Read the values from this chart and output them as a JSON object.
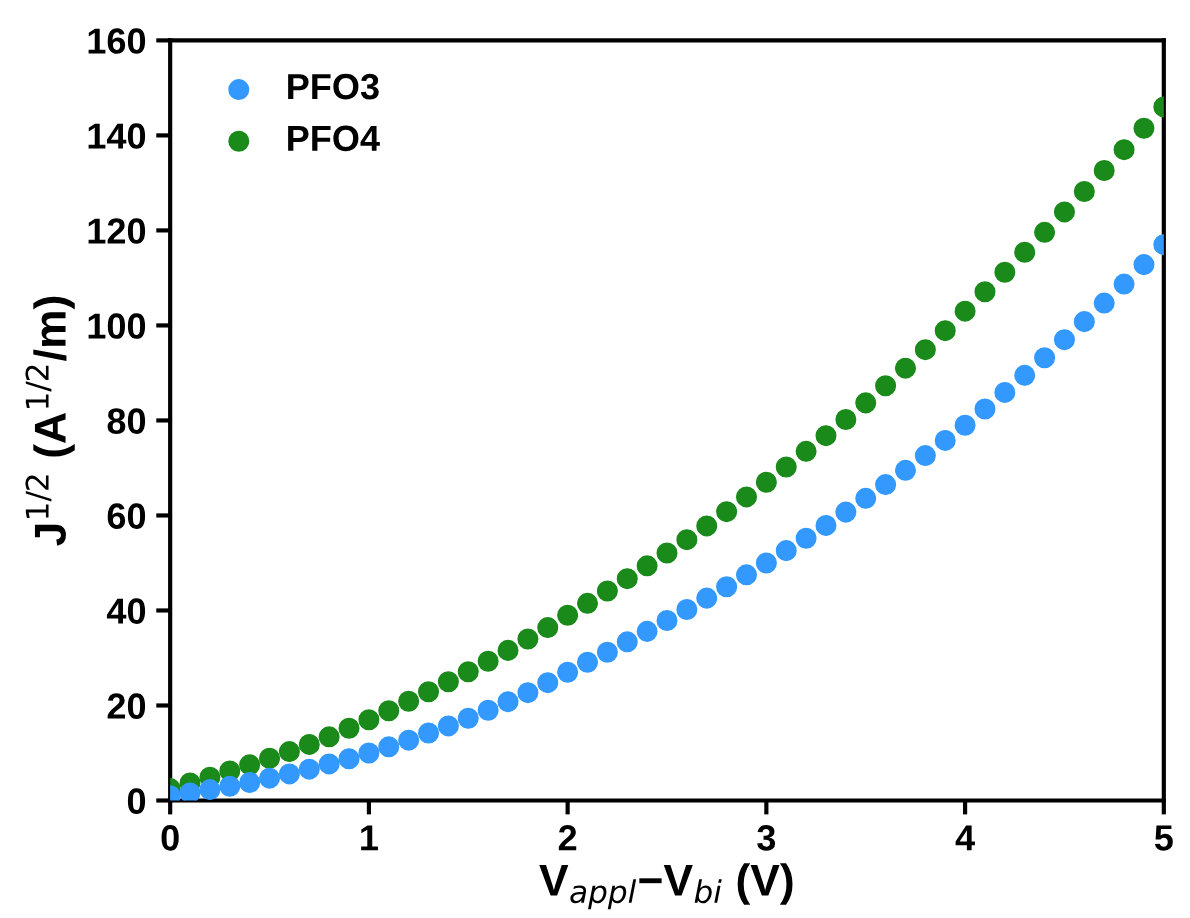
{
  "chart_data": {
    "type": "scatter",
    "xlabel": "V$_{appl}$−V$_{bi}$ (V)",
    "ylabel": "J$^{1/2}$ (A$^{1/2}$/m)",
    "x": [
      0,
      0.1,
      0.2,
      0.3,
      0.4,
      0.5,
      0.6,
      0.7,
      0.8,
      0.9,
      1.0,
      1.1,
      1.2,
      1.3,
      1.4,
      1.5,
      1.6,
      1.7,
      1.8,
      1.9,
      2.0,
      2.1,
      2.2,
      2.3,
      2.4,
      2.5,
      2.6,
      2.7,
      2.8,
      2.9,
      3.0,
      3.1,
      3.2,
      3.3,
      3.4,
      3.5,
      3.6,
      3.7,
      3.8,
      3.9,
      4.0,
      4.1,
      4.2,
      4.3,
      4.4,
      4.5,
      4.6,
      4.7,
      4.8,
      4.9,
      5.0
    ],
    "series": [
      {
        "name": "PFO3",
        "color": "#3399ff",
        "values": [
          1,
          1.6,
          2.3,
          3,
          3.8,
          4.7,
          5.6,
          6.6,
          7.7,
          8.8,
          10,
          11.3,
          12.7,
          14.2,
          15.7,
          17.3,
          19,
          20.8,
          22.7,
          24.8,
          27,
          29.1,
          31.2,
          33.4,
          35.6,
          37.9,
          40.2,
          42.6,
          45,
          47.5,
          50,
          52.6,
          55.2,
          57.9,
          60.7,
          63.6,
          66.5,
          69.5,
          72.6,
          75.8,
          79,
          82.4,
          85.9,
          89.5,
          93.2,
          97,
          100.8,
          104.7,
          108.7,
          112.8,
          117
        ]
      },
      {
        "name": "PFO4",
        "color": "#1a8a1a",
        "values": [
          2.5,
          3.7,
          4.9,
          6.2,
          7.5,
          8.9,
          10.3,
          11.8,
          13.4,
          15.2,
          17,
          18.9,
          20.9,
          22.9,
          25,
          27.1,
          29.3,
          31.6,
          34,
          36.4,
          39,
          41.5,
          44.1,
          46.7,
          49.4,
          52.1,
          54.9,
          57.8,
          60.8,
          63.9,
          67,
          70.2,
          73.5,
          76.8,
          80.2,
          83.7,
          87.3,
          91,
          94.9,
          98.9,
          103,
          107.1,
          111.2,
          115.4,
          119.6,
          123.9,
          128.2,
          132.6,
          137,
          141.5,
          146
        ]
      }
    ],
    "xlim": [
      0,
      5
    ],
    "ylim": [
      0,
      160
    ],
    "xticks": [
      0,
      1,
      2,
      3,
      4,
      5
    ],
    "yticks": [
      0,
      20,
      40,
      60,
      80,
      100,
      120,
      140,
      160
    ],
    "marker": "circle",
    "legend": "top left",
    "grid": false
  }
}
